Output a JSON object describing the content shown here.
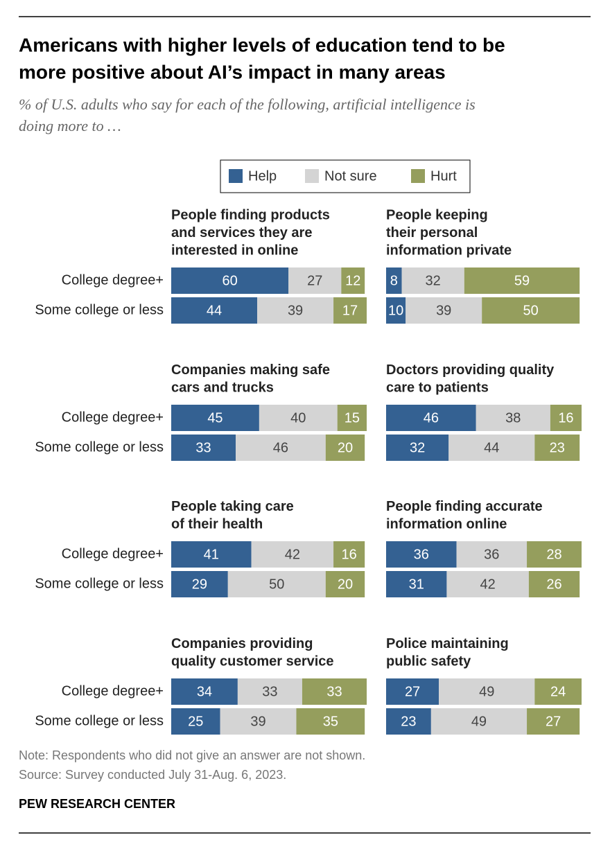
{
  "title": [
    "Americans with higher levels of education tend to be",
    "more positive about AI’s impact in many areas"
  ],
  "subtitle": [
    "% of U.S. adults who say for each of the following, artificial intelligence is",
    "doing more to …"
  ],
  "note": "Note: Respondents who did not give an answer are not shown.",
  "source": "Source: Survey conducted July 31-Aug. 6, 2023.",
  "brand": "PEW RESEARCH CENTER",
  "chart_data": {
    "type": "bar",
    "stacked": true,
    "orientation": "horizontal",
    "categories": [
      "College degree+",
      "Some college or less"
    ],
    "xlim": [
      0,
      100
    ],
    "series": [
      {
        "name": "Help",
        "color": "#346192"
      },
      {
        "name": "Not sure",
        "color": "#d4d4d4"
      },
      {
        "name": "Hurt",
        "color": "#959e5d"
      }
    ],
    "panels": [
      {
        "title": [
          "People finding products",
          "and services they are",
          "interested in online"
        ],
        "values": [
          [
            60,
            44
          ],
          [
            27,
            39
          ],
          [
            12,
            17
          ]
        ]
      },
      {
        "title": [
          "People keeping",
          "their personal",
          "information private"
        ],
        "values": [
          [
            8,
            10
          ],
          [
            32,
            39
          ],
          [
            59,
            50
          ]
        ]
      },
      {
        "title": [
          "Companies making safe",
          "cars and trucks"
        ],
        "values": [
          [
            45,
            33
          ],
          [
            40,
            46
          ],
          [
            15,
            20
          ]
        ]
      },
      {
        "title": [
          "Doctors providing quality",
          "care to patients"
        ],
        "values": [
          [
            46,
            32
          ],
          [
            38,
            44
          ],
          [
            16,
            23
          ]
        ]
      },
      {
        "title": [
          "People taking care",
          "of their health"
        ],
        "values": [
          [
            41,
            29
          ],
          [
            42,
            50
          ],
          [
            16,
            20
          ]
        ]
      },
      {
        "title": [
          "People finding accurate",
          "information online"
        ],
        "values": [
          [
            36,
            31
          ],
          [
            36,
            42
          ],
          [
            28,
            26
          ]
        ]
      },
      {
        "title": [
          "Companies providing",
          "quality customer service"
        ],
        "values": [
          [
            34,
            25
          ],
          [
            33,
            39
          ],
          [
            33,
            35
          ]
        ]
      },
      {
        "title": [
          "Police maintaining",
          "public safety"
        ],
        "values": [
          [
            27,
            23
          ],
          [
            49,
            49
          ],
          [
            24,
            27
          ]
        ]
      }
    ]
  }
}
